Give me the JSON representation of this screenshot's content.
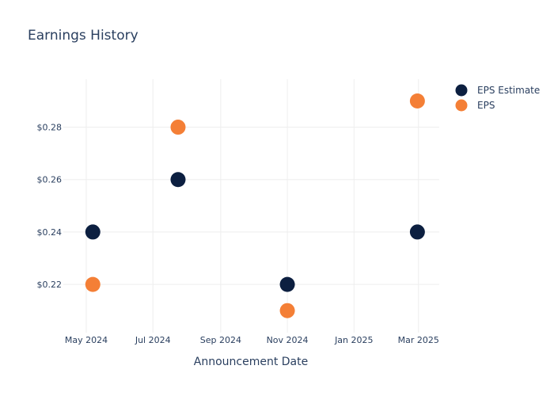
{
  "chart_data": {
    "type": "scatter",
    "title": "Earnings History",
    "xlabel": "Announcement Date",
    "ylabel": "",
    "x_ticks": [
      "May 2024",
      "Jul 2024",
      "Sep 2024",
      "Nov 2024",
      "Jan 2025",
      "Mar 2025"
    ],
    "x_tick_dates": [
      "2024-05-01",
      "2024-07-01",
      "2024-09-01",
      "2024-11-01",
      "2025-01-01",
      "2025-03-01"
    ],
    "xlim": [
      "2024-04-10",
      "2025-03-20"
    ],
    "y_ticks": [
      "$0.22",
      "$0.24",
      "$0.26",
      "$0.28"
    ],
    "y_tick_values": [
      0.22,
      0.24,
      0.26,
      0.28
    ],
    "ylim": [
      0.2016,
      0.2983
    ],
    "grid": true,
    "legend_position": "top-right",
    "series": [
      {
        "name": "EPS Estimate",
        "color": "#0c1f40",
        "points": [
          {
            "x": "2024-05-07",
            "y": 0.24
          },
          {
            "x": "2024-07-24",
            "y": 0.26
          },
          {
            "x": "2024-11-01",
            "y": 0.22
          },
          {
            "x": "2025-02-28",
            "y": 0.24
          }
        ]
      },
      {
        "name": "EPS",
        "color": "#f47f36",
        "points": [
          {
            "x": "2024-05-07",
            "y": 0.22
          },
          {
            "x": "2024-07-24",
            "y": 0.28
          },
          {
            "x": "2024-11-01",
            "y": 0.21
          },
          {
            "x": "2025-02-28",
            "y": 0.29
          }
        ]
      }
    ]
  }
}
